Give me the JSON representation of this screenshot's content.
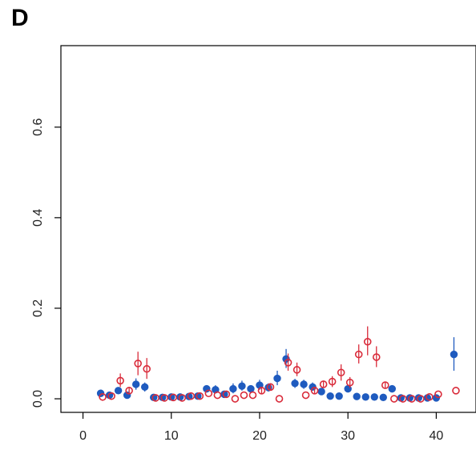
{
  "panel_label": "D",
  "chart_data": {
    "type": "scatter",
    "title": "",
    "xlabel": "",
    "ylabel": "",
    "xlim": [
      -2.5,
      44.5
    ],
    "ylim": [
      -0.03,
      0.78
    ],
    "x_ticks": [
      0,
      10,
      20,
      30,
      40
    ],
    "y_ticks": [
      0.0,
      0.2,
      0.4,
      0.6
    ],
    "y_tick_labels": [
      "0.0",
      "0.2",
      "0.4",
      "0.6"
    ],
    "grid": false,
    "legend": "none",
    "series": [
      {
        "marker": "filled-circle",
        "color": "#1f5bbf",
        "points": [
          {
            "x": 2,
            "y": 0.012,
            "lo": 0.012,
            "hi": 0.012
          },
          {
            "x": 3,
            "y": 0.008,
            "lo": 0.008,
            "hi": 0.008
          },
          {
            "x": 4,
            "y": 0.018,
            "lo": 0.013,
            "hi": 0.024
          },
          {
            "x": 5,
            "y": 0.008,
            "lo": 0.008,
            "hi": 0.008
          },
          {
            "x": 6,
            "y": 0.032,
            "lo": 0.02,
            "hi": 0.045
          },
          {
            "x": 7,
            "y": 0.026,
            "lo": 0.016,
            "hi": 0.036
          },
          {
            "x": 8,
            "y": 0.003,
            "lo": 0.003,
            "hi": 0.003
          },
          {
            "x": 9,
            "y": 0.003,
            "lo": 0.003,
            "hi": 0.003
          },
          {
            "x": 10,
            "y": 0.004,
            "lo": 0.004,
            "hi": 0.004
          },
          {
            "x": 11,
            "y": 0.004,
            "lo": 0.004,
            "hi": 0.004
          },
          {
            "x": 12,
            "y": 0.005,
            "lo": 0.005,
            "hi": 0.005
          },
          {
            "x": 13,
            "y": 0.006,
            "lo": 0.006,
            "hi": 0.006
          },
          {
            "x": 14,
            "y": 0.022,
            "lo": 0.014,
            "hi": 0.03
          },
          {
            "x": 15,
            "y": 0.02,
            "lo": 0.012,
            "hi": 0.03
          },
          {
            "x": 16,
            "y": 0.01,
            "lo": 0.01,
            "hi": 0.01
          },
          {
            "x": 17,
            "y": 0.022,
            "lo": 0.012,
            "hi": 0.034
          },
          {
            "x": 18,
            "y": 0.028,
            "lo": 0.018,
            "hi": 0.04
          },
          {
            "x": 19,
            "y": 0.022,
            "lo": 0.014,
            "hi": 0.03
          },
          {
            "x": 20,
            "y": 0.03,
            "lo": 0.02,
            "hi": 0.042
          },
          {
            "x": 21,
            "y": 0.025,
            "lo": 0.016,
            "hi": 0.034
          },
          {
            "x": 22,
            "y": 0.045,
            "lo": 0.03,
            "hi": 0.062
          },
          {
            "x": 23,
            "y": 0.088,
            "lo": 0.068,
            "hi": 0.11
          },
          {
            "x": 24,
            "y": 0.034,
            "lo": 0.024,
            "hi": 0.044
          },
          {
            "x": 25,
            "y": 0.032,
            "lo": 0.022,
            "hi": 0.042
          },
          {
            "x": 26,
            "y": 0.026,
            "lo": 0.018,
            "hi": 0.036
          },
          {
            "x": 27,
            "y": 0.016,
            "lo": 0.016,
            "hi": 0.016
          },
          {
            "x": 28,
            "y": 0.006,
            "lo": 0.006,
            "hi": 0.006
          },
          {
            "x": 29,
            "y": 0.006,
            "lo": 0.006,
            "hi": 0.006
          },
          {
            "x": 30,
            "y": 0.022,
            "lo": 0.014,
            "hi": 0.03
          },
          {
            "x": 31,
            "y": 0.005,
            "lo": 0.005,
            "hi": 0.005
          },
          {
            "x": 32,
            "y": 0.004,
            "lo": 0.004,
            "hi": 0.004
          },
          {
            "x": 33,
            "y": 0.004,
            "lo": 0.004,
            "hi": 0.004
          },
          {
            "x": 34,
            "y": 0.003,
            "lo": 0.003,
            "hi": 0.003
          },
          {
            "x": 35,
            "y": 0.022,
            "lo": 0.014,
            "hi": 0.03
          },
          {
            "x": 36,
            "y": 0.002,
            "lo": 0.002,
            "hi": 0.002
          },
          {
            "x": 37,
            "y": 0.002,
            "lo": 0.002,
            "hi": 0.002
          },
          {
            "x": 38,
            "y": 0.002,
            "lo": 0.002,
            "hi": 0.002
          },
          {
            "x": 39,
            "y": 0.002,
            "lo": 0.002,
            "hi": 0.002
          },
          {
            "x": 40,
            "y": 0.002,
            "lo": 0.002,
            "hi": 0.002
          },
          {
            "x": 42,
            "y": 0.098,
            "lo": 0.062,
            "hi": 0.136
          }
        ]
      },
      {
        "marker": "open-circle",
        "color": "#d92b3a",
        "points": [
          {
            "x": 2,
            "y": 0.004,
            "lo": 0.004,
            "hi": 0.004
          },
          {
            "x": 3,
            "y": 0.006,
            "lo": 0.006,
            "hi": 0.006
          },
          {
            "x": 4,
            "y": 0.04,
            "lo": 0.026,
            "hi": 0.056
          },
          {
            "x": 5,
            "y": 0.018,
            "lo": 0.012,
            "hi": 0.024
          },
          {
            "x": 6,
            "y": 0.078,
            "lo": 0.052,
            "hi": 0.104
          },
          {
            "x": 7,
            "y": 0.066,
            "lo": 0.044,
            "hi": 0.09
          },
          {
            "x": 8,
            "y": 0.002,
            "lo": 0.002,
            "hi": 0.002
          },
          {
            "x": 9,
            "y": 0.002,
            "lo": 0.002,
            "hi": 0.002
          },
          {
            "x": 10,
            "y": 0.003,
            "lo": 0.003,
            "hi": 0.003
          },
          {
            "x": 11,
            "y": 0.002,
            "lo": 0.002,
            "hi": 0.002
          },
          {
            "x": 12,
            "y": 0.006,
            "lo": 0.006,
            "hi": 0.006
          },
          {
            "x": 13,
            "y": 0.006,
            "lo": 0.006,
            "hi": 0.006
          },
          {
            "x": 14,
            "y": 0.012,
            "lo": 0.012,
            "hi": 0.012
          },
          {
            "x": 15,
            "y": 0.008,
            "lo": 0.008,
            "hi": 0.008
          },
          {
            "x": 16,
            "y": 0.01,
            "lo": 0.01,
            "hi": 0.01
          },
          {
            "x": 17,
            "y": 0.0,
            "lo": 0.0,
            "hi": 0.0
          },
          {
            "x": 18,
            "y": 0.008,
            "lo": 0.008,
            "hi": 0.008
          },
          {
            "x": 19,
            "y": 0.008,
            "lo": 0.008,
            "hi": 0.008
          },
          {
            "x": 20,
            "y": 0.018,
            "lo": 0.01,
            "hi": 0.026
          },
          {
            "x": 21,
            "y": 0.026,
            "lo": 0.018,
            "hi": 0.034
          },
          {
            "x": 22,
            "y": 0.0,
            "lo": 0.0,
            "hi": 0.0
          },
          {
            "x": 23,
            "y": 0.08,
            "lo": 0.062,
            "hi": 0.1
          },
          {
            "x": 24,
            "y": 0.064,
            "lo": 0.05,
            "hi": 0.08
          },
          {
            "x": 25,
            "y": 0.008,
            "lo": 0.008,
            "hi": 0.008
          },
          {
            "x": 26,
            "y": 0.018,
            "lo": 0.01,
            "hi": 0.026
          },
          {
            "x": 27,
            "y": 0.032,
            "lo": 0.024,
            "hi": 0.04
          },
          {
            "x": 28,
            "y": 0.038,
            "lo": 0.026,
            "hi": 0.05
          },
          {
            "x": 29,
            "y": 0.058,
            "lo": 0.04,
            "hi": 0.076
          },
          {
            "x": 30,
            "y": 0.036,
            "lo": 0.024,
            "hi": 0.048
          },
          {
            "x": 31,
            "y": 0.098,
            "lo": 0.078,
            "hi": 0.12
          },
          {
            "x": 32,
            "y": 0.126,
            "lo": 0.096,
            "hi": 0.16
          },
          {
            "x": 33,
            "y": 0.092,
            "lo": 0.07,
            "hi": 0.116
          },
          {
            "x": 34,
            "y": 0.03,
            "lo": 0.022,
            "hi": 0.038
          },
          {
            "x": 35,
            "y": 0.0,
            "lo": 0.0,
            "hi": 0.0
          },
          {
            "x": 36,
            "y": 0.0,
            "lo": 0.0,
            "hi": 0.0
          },
          {
            "x": 37,
            "y": 0.0,
            "lo": 0.0,
            "hi": 0.0
          },
          {
            "x": 38,
            "y": 0.0,
            "lo": 0.0,
            "hi": 0.0
          },
          {
            "x": 39,
            "y": 0.004,
            "lo": 0.004,
            "hi": 0.004
          },
          {
            "x": 40,
            "y": 0.01,
            "lo": 0.01,
            "hi": 0.01
          },
          {
            "x": 42,
            "y": 0.018,
            "lo": 0.018,
            "hi": 0.018
          }
        ]
      }
    ]
  }
}
